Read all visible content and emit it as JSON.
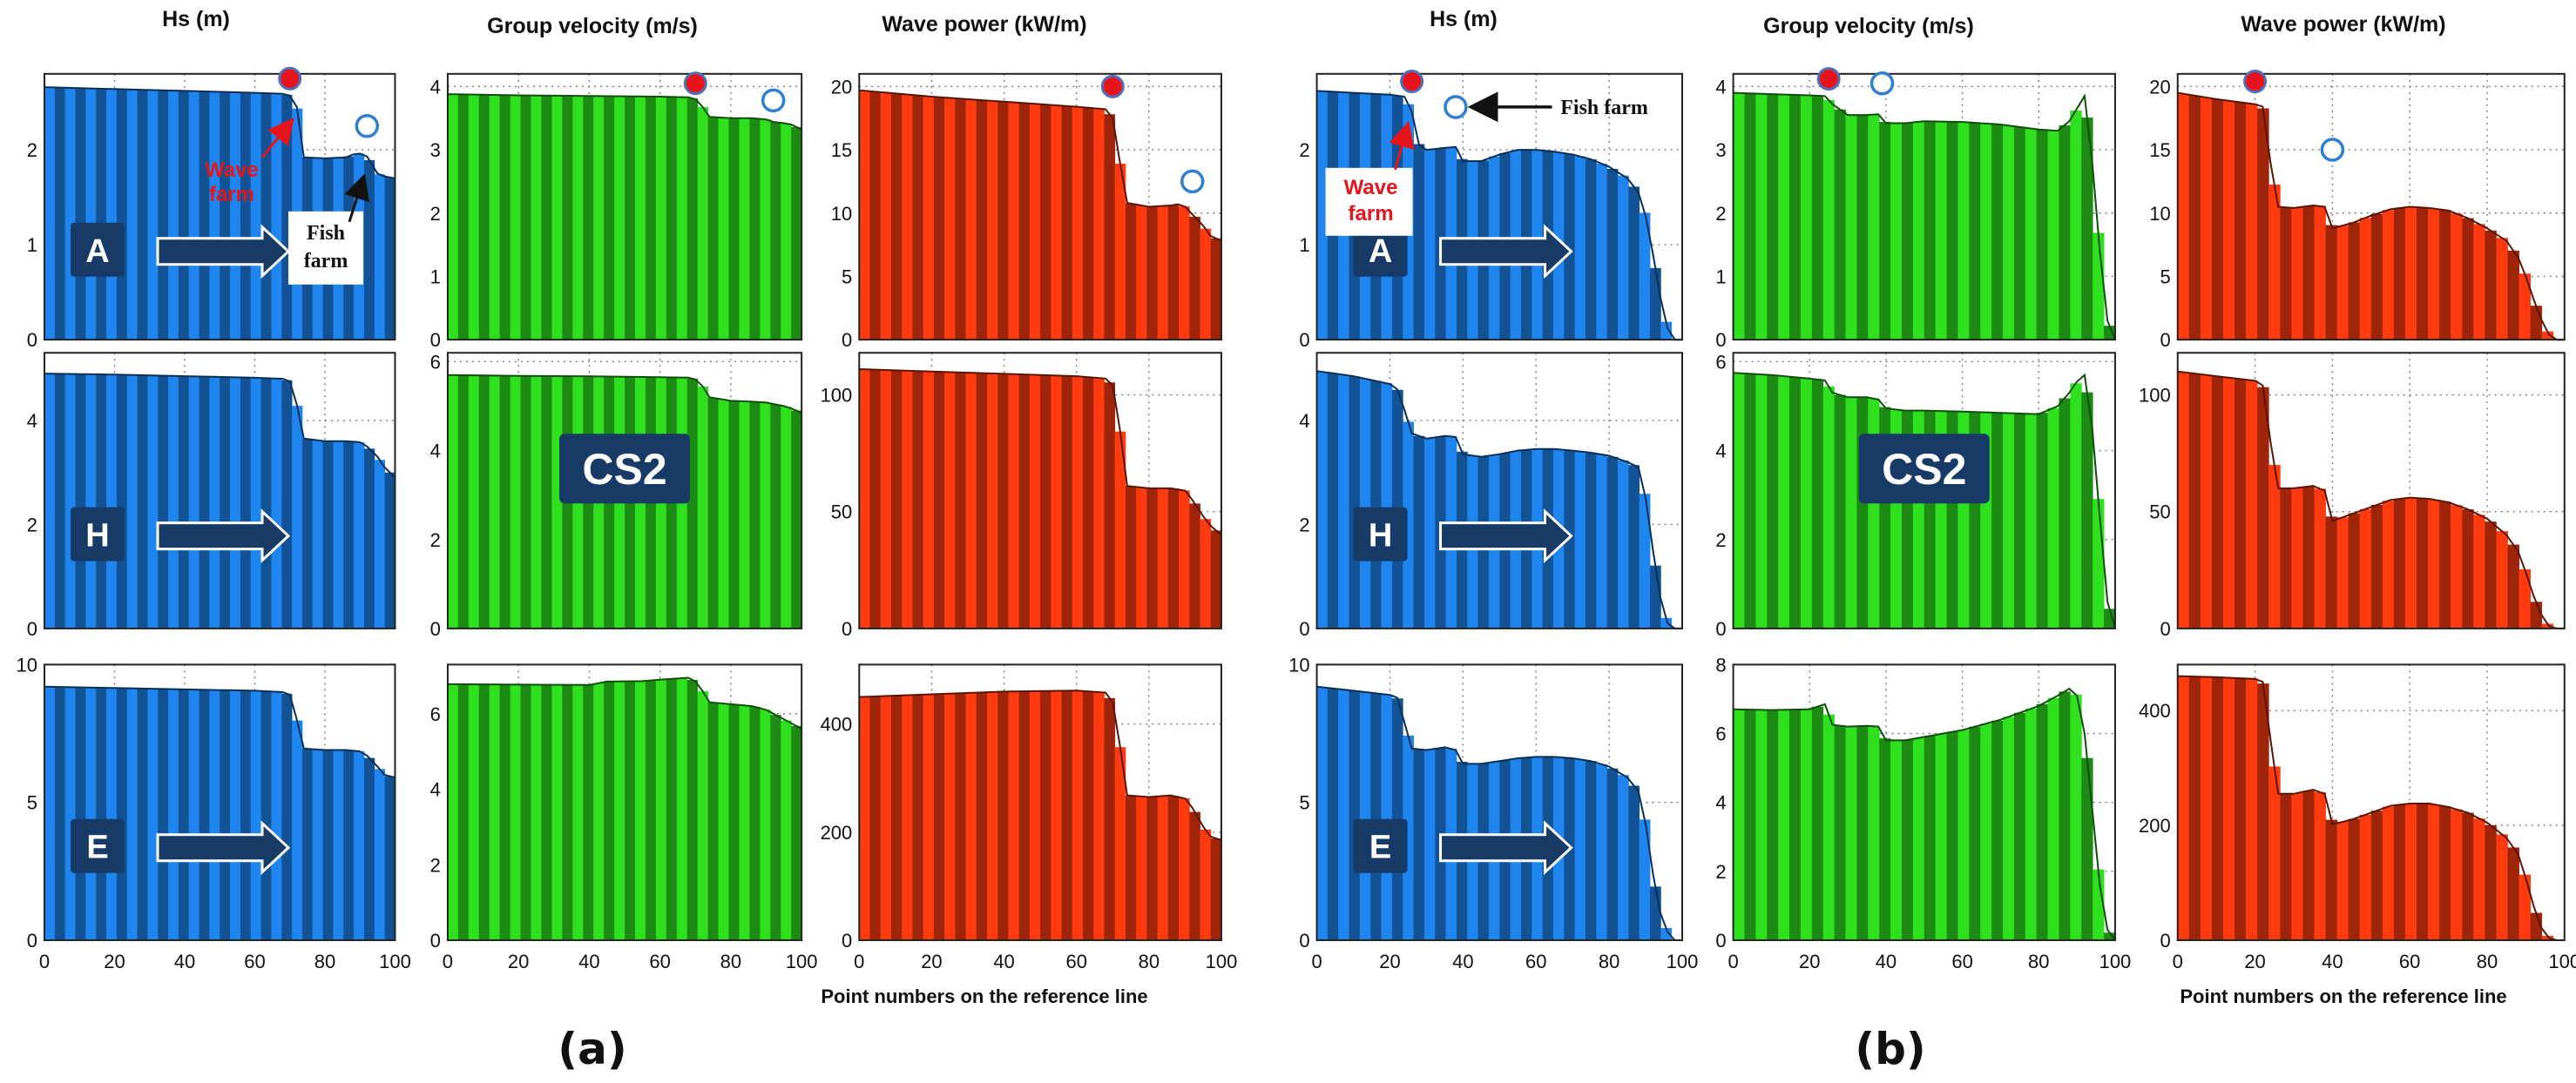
{
  "figure": {
    "panel_labels": [
      "(a)",
      "(b)"
    ],
    "x_axis_label": "Point numbers on the reference line",
    "x_ticks": [
      0,
      20,
      40,
      60,
      80,
      100
    ],
    "column_titles": [
      "Hs (m)",
      "Group velocity (m/s)",
      "Wave power (kW/m)"
    ],
    "scenario_labels": [
      "A",
      "H",
      "E"
    ],
    "cs2_label": "CS2",
    "annotations": {
      "wave_farm": "Wave farm",
      "fish_farm": "Fish farm",
      "fish_farm_b": "Fish farm"
    },
    "colors": {
      "hs": "#1f86f0",
      "cg": "#2ee01e",
      "power": "#ff3b0f",
      "label_box": "#173a66",
      "wave_farm_marker": "#e8141c",
      "fish_farm_marker": "#2f7fd0"
    }
  },
  "chart_data": [
    {
      "type": "area",
      "panel": "a",
      "row": "A",
      "variable": "Hs (m)",
      "ylim": [
        0,
        2.8
      ],
      "yticks": [
        0,
        1,
        2
      ],
      "x": [
        0,
        10,
        20,
        30,
        40,
        50,
        60,
        68,
        70,
        72,
        74,
        80,
        86,
        88,
        90,
        92,
        95,
        97,
        100
      ],
      "values": [
        2.66,
        2.65,
        2.64,
        2.63,
        2.62,
        2.61,
        2.6,
        2.59,
        2.57,
        2.45,
        1.92,
        1.91,
        1.92,
        1.95,
        1.96,
        1.93,
        1.75,
        1.72,
        1.7
      ],
      "wave_farm_marker": {
        "x": 70,
        "y": 2.75
      },
      "fish_farm_marker": {
        "x": 92,
        "y": 2.25
      }
    },
    {
      "type": "area",
      "panel": "a",
      "row": "A",
      "variable": "Group velocity (m/s)",
      "ylim": [
        0,
        4.2
      ],
      "yticks": [
        0,
        1,
        2,
        3,
        4
      ],
      "x": [
        0,
        20,
        40,
        60,
        68,
        70,
        72,
        74,
        80,
        86,
        90,
        92,
        95,
        97,
        100
      ],
      "values": [
        3.88,
        3.86,
        3.85,
        3.84,
        3.83,
        3.8,
        3.68,
        3.52,
        3.5,
        3.5,
        3.48,
        3.44,
        3.42,
        3.4,
        3.32
      ],
      "wave_farm_marker": {
        "x": 70,
        "y": 4.05
      },
      "fish_farm_marker": {
        "x": 92,
        "y": 3.78
      }
    },
    {
      "type": "area",
      "panel": "a",
      "row": "A",
      "variable": "Wave power (kW/m)",
      "ylim": [
        0,
        21
      ],
      "yticks": [
        0,
        5,
        10,
        15,
        20
      ],
      "x": [
        0,
        20,
        40,
        60,
        68,
        70,
        72,
        74,
        80,
        86,
        88,
        90,
        95,
        97,
        100
      ],
      "values": [
        19.7,
        19.2,
        18.8,
        18.4,
        18.2,
        17.5,
        14.0,
        10.8,
        10.5,
        10.6,
        10.7,
        10.5,
        9.0,
        8.2,
        7.8
      ],
      "wave_farm_marker": {
        "x": 70,
        "y": 20.0
      },
      "fish_farm_marker": {
        "x": 92,
        "y": 12.5
      }
    },
    {
      "type": "area",
      "panel": "a",
      "row": "H",
      "variable": "Hs (m)",
      "ylim": [
        0,
        5.3
      ],
      "yticks": [
        0,
        2,
        4
      ],
      "x": [
        0,
        20,
        40,
        60,
        68,
        70,
        72,
        74,
        80,
        86,
        90,
        92,
        95,
        97,
        100
      ],
      "values": [
        4.9,
        4.88,
        4.85,
        4.82,
        4.8,
        4.75,
        4.3,
        3.65,
        3.6,
        3.6,
        3.58,
        3.5,
        3.3,
        3.1,
        2.9
      ]
    },
    {
      "type": "area",
      "panel": "a",
      "row": "H",
      "variable": "Group velocity (m/s)",
      "ylim": [
        0,
        6.2
      ],
      "yticks": [
        0,
        2,
        4,
        6
      ],
      "x": [
        0,
        20,
        40,
        60,
        68,
        70,
        72,
        74,
        80,
        86,
        90,
        92,
        95,
        97,
        100
      ],
      "values": [
        5.7,
        5.68,
        5.67,
        5.65,
        5.64,
        5.6,
        5.45,
        5.2,
        5.12,
        5.1,
        5.08,
        5.05,
        5.0,
        4.95,
        4.85
      ]
    },
    {
      "type": "area",
      "panel": "a",
      "row": "H",
      "variable": "Wave power (kW/m)",
      "ylim": [
        0,
        118
      ],
      "yticks": [
        0,
        50,
        100
      ],
      "x": [
        0,
        20,
        40,
        60,
        68,
        70,
        72,
        74,
        80,
        86,
        90,
        92,
        95,
        97,
        100
      ],
      "values": [
        111,
        110,
        109,
        108,
        107,
        104,
        85,
        61,
        60,
        60,
        59,
        55,
        48,
        44,
        40
      ]
    },
    {
      "type": "area",
      "panel": "a",
      "row": "E",
      "variable": "Hs (m)",
      "ylim": [
        0,
        10
      ],
      "yticks": [
        0,
        5,
        10
      ],
      "x": [
        0,
        20,
        40,
        60,
        68,
        70,
        72,
        74,
        80,
        86,
        90,
        92,
        95,
        97,
        100
      ],
      "values": [
        9.2,
        9.15,
        9.1,
        9.05,
        9.0,
        8.9,
        8.0,
        6.95,
        6.9,
        6.9,
        6.85,
        6.7,
        6.3,
        6.0,
        5.9
      ]
    },
    {
      "type": "area",
      "panel": "a",
      "row": "E",
      "variable": "Group velocity (m/s)",
      "ylim": [
        0,
        7.3
      ],
      "yticks": [
        0,
        2,
        4,
        6
      ],
      "x": [
        0,
        20,
        40,
        45,
        55,
        60,
        68,
        70,
        72,
        74,
        80,
        86,
        90,
        92,
        95,
        97,
        100
      ],
      "values": [
        6.78,
        6.77,
        6.76,
        6.85,
        6.86,
        6.9,
        6.95,
        6.85,
        6.6,
        6.3,
        6.25,
        6.2,
        6.1,
        6.0,
        5.85,
        5.75,
        5.6
      ]
    },
    {
      "type": "area",
      "panel": "a",
      "row": "E",
      "variable": "Wave power (kW/m)",
      "ylim": [
        0,
        510
      ],
      "yticks": [
        0,
        200,
        400
      ],
      "x": [
        0,
        20,
        40,
        60,
        68,
        70,
        72,
        74,
        80,
        86,
        90,
        92,
        95,
        97,
        100
      ],
      "values": [
        450,
        455,
        460,
        462,
        458,
        440,
        360,
        268,
        265,
        268,
        262,
        245,
        210,
        192,
        185
      ]
    },
    {
      "type": "area",
      "panel": "b",
      "row": "A",
      "variable": "Hs (m)",
      "ylim": [
        0,
        2.8
      ],
      "yticks": [
        0,
        1,
        2
      ],
      "x": [
        0,
        10,
        20,
        24,
        26,
        28,
        30,
        35,
        38,
        40,
        45,
        50,
        55,
        60,
        65,
        70,
        75,
        80,
        85,
        88,
        90,
        92,
        94,
        96,
        98,
        100
      ],
      "values": [
        2.62,
        2.6,
        2.58,
        2.56,
        2.4,
        2.05,
        2.0,
        2.02,
        2.03,
        1.88,
        1.88,
        1.95,
        2.0,
        2.0,
        1.98,
        1.95,
        1.9,
        1.82,
        1.7,
        1.55,
        1.3,
        0.9,
        0.45,
        0.12,
        0.0,
        0.0
      ],
      "wave_farm_marker": {
        "x": 26,
        "y": 2.72
      },
      "fish_farm_marker": {
        "x": 38,
        "y": 2.45
      }
    },
    {
      "type": "area",
      "panel": "b",
      "row": "A",
      "variable": "Group velocity (m/s)",
      "ylim": [
        0,
        4.2
      ],
      "yticks": [
        0,
        1,
        2,
        3,
        4
      ],
      "x": [
        0,
        10,
        20,
        24,
        26,
        30,
        35,
        38,
        40,
        45,
        50,
        60,
        70,
        80,
        85,
        88,
        90,
        92,
        94,
        96,
        98,
        100
      ],
      "values": [
        3.9,
        3.88,
        3.86,
        3.85,
        3.72,
        3.55,
        3.55,
        3.56,
        3.42,
        3.42,
        3.45,
        3.44,
        3.4,
        3.32,
        3.3,
        3.45,
        3.65,
        3.85,
        2.8,
        1.4,
        0.3,
        0.0
      ],
      "wave_farm_marker": {
        "x": 25,
        "y": 4.12
      },
      "fish_farm_marker": {
        "x": 39,
        "y": 4.05
      }
    },
    {
      "type": "area",
      "panel": "b",
      "row": "A",
      "variable": "Wave power (kW/m)",
      "ylim": [
        0,
        21
      ],
      "yticks": [
        0,
        5,
        10,
        15,
        20
      ],
      "x": [
        0,
        10,
        20,
        22,
        24,
        26,
        30,
        35,
        38,
        40,
        45,
        50,
        55,
        60,
        65,
        70,
        75,
        80,
        85,
        88,
        90,
        92,
        94,
        96,
        98,
        100
      ],
      "values": [
        19.5,
        19.0,
        18.6,
        18.4,
        14.0,
        10.5,
        10.4,
        10.6,
        10.5,
        8.8,
        9.2,
        9.8,
        10.3,
        10.5,
        10.4,
        10.2,
        9.6,
        8.8,
        7.8,
        6.5,
        5.0,
        3.2,
        1.6,
        0.4,
        0.0,
        0.0
      ],
      "wave_farm_marker": {
        "x": 20,
        "y": 20.4
      },
      "fish_farm_marker": {
        "x": 40,
        "y": 15.0
      }
    },
    {
      "type": "area",
      "panel": "b",
      "row": "H",
      "variable": "Hs (m)",
      "ylim": [
        0,
        5.3
      ],
      "yticks": [
        0,
        2,
        4
      ],
      "x": [
        0,
        10,
        20,
        22,
        24,
        26,
        30,
        35,
        38,
        40,
        45,
        50,
        55,
        60,
        65,
        70,
        75,
        80,
        85,
        88,
        90,
        92,
        94,
        96,
        98,
        100
      ],
      "values": [
        4.95,
        4.85,
        4.7,
        4.6,
        4.2,
        3.75,
        3.65,
        3.7,
        3.68,
        3.35,
        3.3,
        3.35,
        3.42,
        3.45,
        3.45,
        3.42,
        3.38,
        3.32,
        3.2,
        3.1,
        2.5,
        1.5,
        0.6,
        0.1,
        0.0,
        0.0
      ]
    },
    {
      "type": "area",
      "panel": "b",
      "row": "H",
      "variable": "Group velocity (m/s)",
      "ylim": [
        0,
        6.2
      ],
      "yticks": [
        0,
        2,
        4,
        6
      ],
      "x": [
        0,
        10,
        20,
        24,
        26,
        30,
        35,
        38,
        40,
        45,
        50,
        60,
        70,
        80,
        85,
        88,
        90,
        92,
        94,
        96,
        98,
        100
      ],
      "values": [
        5.75,
        5.7,
        5.62,
        5.58,
        5.3,
        5.2,
        5.2,
        5.15,
        4.95,
        4.9,
        4.9,
        4.88,
        4.85,
        4.82,
        5.0,
        5.3,
        5.55,
        5.7,
        4.5,
        2.5,
        0.6,
        0.0
      ]
    },
    {
      "type": "area",
      "panel": "b",
      "row": "H",
      "variable": "Wave power (kW/m)",
      "ylim": [
        0,
        118
      ],
      "yticks": [
        0,
        50,
        100
      ],
      "x": [
        0,
        10,
        20,
        22,
        24,
        26,
        30,
        35,
        38,
        40,
        45,
        50,
        55,
        60,
        65,
        70,
        75,
        80,
        85,
        88,
        90,
        92,
        94,
        96,
        98,
        100
      ],
      "values": [
        110,
        108,
        106,
        104,
        80,
        60,
        60,
        61,
        59,
        46,
        49,
        52,
        55,
        56,
        55.5,
        54,
        51,
        47,
        40,
        33,
        24,
        14,
        6,
        1,
        0,
        0
      ]
    },
    {
      "type": "area",
      "panel": "b",
      "row": "E",
      "variable": "Hs (m)",
      "ylim": [
        0,
        10
      ],
      "yticks": [
        0,
        5,
        10
      ],
      "x": [
        0,
        10,
        20,
        22,
        24,
        26,
        30,
        35,
        38,
        40,
        45,
        50,
        55,
        60,
        65,
        70,
        75,
        80,
        85,
        88,
        90,
        92,
        94,
        96,
        98,
        100
      ],
      "values": [
        9.2,
        9.05,
        8.9,
        8.8,
        7.9,
        6.95,
        6.9,
        7.0,
        6.9,
        6.4,
        6.4,
        6.5,
        6.6,
        6.65,
        6.65,
        6.6,
        6.5,
        6.3,
        5.9,
        5.4,
        4.2,
        2.4,
        1.0,
        0.3,
        0.0,
        0.0
      ]
    },
    {
      "type": "area",
      "panel": "b",
      "row": "E",
      "variable": "Group velocity (m/s)",
      "ylim": [
        0,
        8
      ],
      "yticks": [
        0,
        2,
        4,
        6,
        8
      ],
      "x": [
        0,
        10,
        20,
        24,
        26,
        30,
        35,
        38,
        40,
        45,
        50,
        60,
        70,
        80,
        85,
        88,
        90,
        92,
        94,
        96,
        98,
        100
      ],
      "values": [
        6.7,
        6.68,
        6.7,
        6.85,
        6.25,
        6.2,
        6.22,
        6.2,
        5.8,
        5.8,
        5.9,
        6.1,
        6.4,
        6.8,
        7.1,
        7.3,
        7.1,
        6.0,
        3.8,
        1.6,
        0.3,
        0.0
      ]
    },
    {
      "type": "area",
      "panel": "b",
      "row": "E",
      "variable": "Wave power (kW/m)",
      "ylim": [
        0,
        480
      ],
      "yticks": [
        0,
        200,
        400
      ],
      "x": [
        0,
        10,
        20,
        22,
        24,
        26,
        30,
        35,
        38,
        40,
        45,
        50,
        55,
        60,
        65,
        70,
        75,
        80,
        85,
        88,
        90,
        92,
        94,
        96,
        98,
        100
      ],
      "values": [
        460,
        458,
        455,
        450,
        350,
        255,
        255,
        262,
        255,
        202,
        210,
        222,
        234,
        238,
        238,
        232,
        222,
        205,
        178,
        150,
        108,
        60,
        22,
        4,
        0,
        0
      ]
    }
  ]
}
